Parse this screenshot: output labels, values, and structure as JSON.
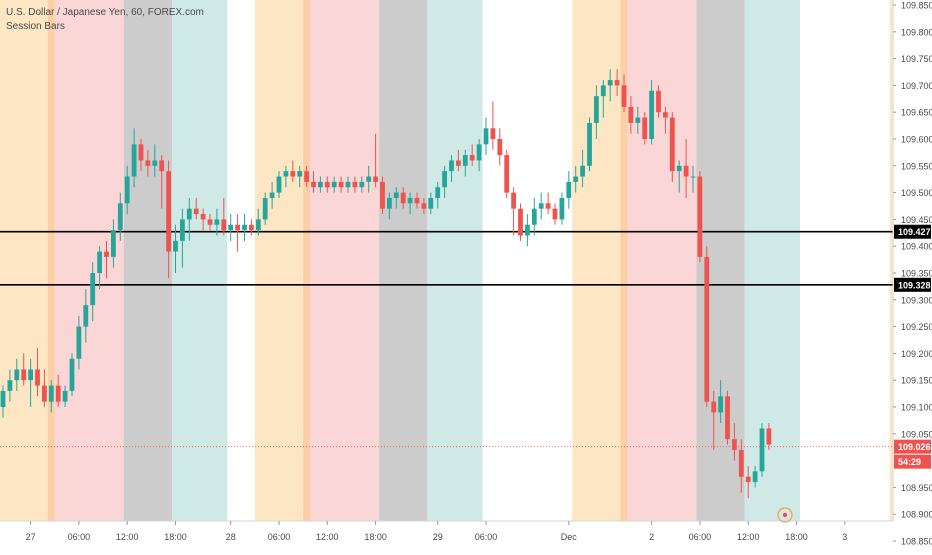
{
  "header": {
    "symbol_line": "U.S. Dollar / Japanese Yen, 60, FOREX.com",
    "indicator_label": "Session Bars"
  },
  "colors": {
    "up": "#26a69a",
    "down": "#ef5350",
    "session_asia": "#fde6c4",
    "session_asia_edge": "#fbd0a6",
    "session_london": "#fbd6d6",
    "session_overlap": "#cccccc",
    "session_ny": "#cfe9e6",
    "hline": "#000000",
    "current_price": "#ef5350",
    "axis_text": "#4a4a4a"
  },
  "price_axis": {
    "labels": [
      "109.850",
      "109.800",
      "109.750",
      "109.700",
      "109.650",
      "109.600",
      "109.550",
      "109.500",
      "109.450",
      "109.400",
      "109.350",
      "109.300",
      "109.250",
      "109.200",
      "109.150",
      "109.100",
      "109.050",
      "108.950",
      "108.900",
      "108.850"
    ]
  },
  "time_axis": {
    "labels": [
      "27",
      "06:00",
      "12:00",
      "18:00",
      "28",
      "06:00",
      "12:00",
      "18:00",
      "29",
      "06:00",
      "Dec",
      "2",
      "06:00",
      "12:00",
      "18:00",
      "3"
    ]
  },
  "badges": {
    "level_upper": "109.427",
    "level_lower": "109.328",
    "current_price": "109.026",
    "countdown": "54:29"
  },
  "chart_data": {
    "type": "candlestick",
    "symbol": "USD/JPY",
    "interval": "60",
    "ylim": [
      108.85,
      109.85
    ],
    "horizontal_levels": [
      109.427,
      109.328
    ],
    "current_price": 109.026,
    "session_bands": [
      {
        "session": "asia",
        "from": 0,
        "to": 8
      },
      {
        "session": "london",
        "from": 8,
        "to": 18
      },
      {
        "session": "overlap",
        "from": 18,
        "to": 25
      },
      {
        "session": "ny",
        "from": 25,
        "to": 33
      },
      {
        "session": "asia",
        "from": 37,
        "to": 45
      },
      {
        "session": "london",
        "from": 45,
        "to": 55
      },
      {
        "session": "overlap",
        "from": 55,
        "to": 62
      },
      {
        "session": "ny",
        "from": 62,
        "to": 70
      },
      {
        "session": "asia",
        "from": 83,
        "to": 91
      },
      {
        "session": "london",
        "from": 91,
        "to": 101
      },
      {
        "session": "overlap",
        "from": 101,
        "to": 108
      },
      {
        "session": "ny",
        "from": 108,
        "to": 116
      },
      {
        "session": "asia",
        "from": 129,
        "to": 137
      },
      {
        "session": "london",
        "from": 137,
        "to": 147
      },
      {
        "session": "overlap",
        "from": 147,
        "to": 154
      },
      {
        "session": "ny",
        "from": 154,
        "to": 162
      },
      {
        "session": "asia",
        "from": 175,
        "to": 183
      },
      {
        "session": "london",
        "from": 183,
        "to": 193
      },
      {
        "session": "overlap",
        "from": 193,
        "to": 200
      },
      {
        "session": "ny",
        "from": 200,
        "to": 208
      }
    ],
    "candles": [
      {
        "o": 109.1,
        "h": 109.14,
        "l": 109.08,
        "c": 109.13
      },
      {
        "o": 109.13,
        "h": 109.17,
        "l": 109.11,
        "c": 109.15
      },
      {
        "o": 109.15,
        "h": 109.19,
        "l": 109.13,
        "c": 109.17
      },
      {
        "o": 109.17,
        "h": 109.2,
        "l": 109.14,
        "c": 109.15
      },
      {
        "o": 109.15,
        "h": 109.19,
        "l": 109.1,
        "c": 109.17
      },
      {
        "o": 109.17,
        "h": 109.21,
        "l": 109.12,
        "c": 109.14
      },
      {
        "o": 109.14,
        "h": 109.17,
        "l": 109.1,
        "c": 109.11
      },
      {
        "o": 109.11,
        "h": 109.15,
        "l": 109.09,
        "c": 109.14
      },
      {
        "o": 109.14,
        "h": 109.16,
        "l": 109.1,
        "c": 109.11
      },
      {
        "o": 109.11,
        "h": 109.14,
        "l": 109.1,
        "c": 109.13
      },
      {
        "o": 109.13,
        "h": 109.2,
        "l": 109.12,
        "c": 109.19
      },
      {
        "o": 109.19,
        "h": 109.27,
        "l": 109.17,
        "c": 109.25
      },
      {
        "o": 109.25,
        "h": 109.32,
        "l": 109.22,
        "c": 109.29
      },
      {
        "o": 109.29,
        "h": 109.37,
        "l": 109.26,
        "c": 109.35
      },
      {
        "o": 109.35,
        "h": 109.4,
        "l": 109.32,
        "c": 109.39
      },
      {
        "o": 109.39,
        "h": 109.41,
        "l": 109.34,
        "c": 109.38
      },
      {
        "o": 109.38,
        "h": 109.45,
        "l": 109.36,
        "c": 109.43
      },
      {
        "o": 109.43,
        "h": 109.5,
        "l": 109.41,
        "c": 109.48
      },
      {
        "o": 109.48,
        "h": 109.55,
        "l": 109.46,
        "c": 109.53
      },
      {
        "o": 109.53,
        "h": 109.62,
        "l": 109.51,
        "c": 109.59
      },
      {
        "o": 109.59,
        "h": 109.6,
        "l": 109.54,
        "c": 109.56
      },
      {
        "o": 109.56,
        "h": 109.58,
        "l": 109.53,
        "c": 109.55
      },
      {
        "o": 109.55,
        "h": 109.59,
        "l": 109.53,
        "c": 109.56
      },
      {
        "o": 109.56,
        "h": 109.57,
        "l": 109.47,
        "c": 109.54
      },
      {
        "o": 109.54,
        "h": 109.56,
        "l": 109.34,
        "c": 109.39
      },
      {
        "o": 109.39,
        "h": 109.44,
        "l": 109.35,
        "c": 109.41
      },
      {
        "o": 109.41,
        "h": 109.47,
        "l": 109.36,
        "c": 109.45
      },
      {
        "o": 109.45,
        "h": 109.49,
        "l": 109.41,
        "c": 109.47
      },
      {
        "o": 109.47,
        "h": 109.49,
        "l": 109.45,
        "c": 109.46
      },
      {
        "o": 109.46,
        "h": 109.47,
        "l": 109.43,
        "c": 109.45
      },
      {
        "o": 109.45,
        "h": 109.46,
        "l": 109.43,
        "c": 109.44
      },
      {
        "o": 109.44,
        "h": 109.47,
        "l": 109.42,
        "c": 109.45
      },
      {
        "o": 109.45,
        "h": 109.49,
        "l": 109.42,
        "c": 109.43
      },
      {
        "o": 109.43,
        "h": 109.46,
        "l": 109.41,
        "c": 109.44
      },
      {
        "o": 109.44,
        "h": 109.46,
        "l": 109.39,
        "c": 109.43
      },
      {
        "o": 109.43,
        "h": 109.46,
        "l": 109.41,
        "c": 109.44
      },
      {
        "o": 109.44,
        "h": 109.45,
        "l": 109.42,
        "c": 109.43
      },
      {
        "o": 109.43,
        "h": 109.47,
        "l": 109.42,
        "c": 109.45
      },
      {
        "o": 109.45,
        "h": 109.5,
        "l": 109.44,
        "c": 109.49
      },
      {
        "o": 109.49,
        "h": 109.52,
        "l": 109.47,
        "c": 109.5
      },
      {
        "o": 109.5,
        "h": 109.54,
        "l": 109.49,
        "c": 109.53
      },
      {
        "o": 109.53,
        "h": 109.55,
        "l": 109.51,
        "c": 109.54
      },
      {
        "o": 109.54,
        "h": 109.56,
        "l": 109.52,
        "c": 109.53
      },
      {
        "o": 109.53,
        "h": 109.55,
        "l": 109.51,
        "c": 109.54
      },
      {
        "o": 109.54,
        "h": 109.55,
        "l": 109.51,
        "c": 109.52
      },
      {
        "o": 109.52,
        "h": 109.54,
        "l": 109.5,
        "c": 109.51
      },
      {
        "o": 109.51,
        "h": 109.53,
        "l": 109.5,
        "c": 109.52
      },
      {
        "o": 109.52,
        "h": 109.53,
        "l": 109.5,
        "c": 109.51
      },
      {
        "o": 109.51,
        "h": 109.53,
        "l": 109.5,
        "c": 109.52
      },
      {
        "o": 109.52,
        "h": 109.53,
        "l": 109.5,
        "c": 109.51
      },
      {
        "o": 109.51,
        "h": 109.53,
        "l": 109.5,
        "c": 109.52
      },
      {
        "o": 109.52,
        "h": 109.53,
        "l": 109.5,
        "c": 109.51
      },
      {
        "o": 109.51,
        "h": 109.53,
        "l": 109.5,
        "c": 109.52
      },
      {
        "o": 109.52,
        "h": 109.55,
        "l": 109.5,
        "c": 109.53
      },
      {
        "o": 109.53,
        "h": 109.61,
        "l": 109.51,
        "c": 109.52
      },
      {
        "o": 109.52,
        "h": 109.53,
        "l": 109.46,
        "c": 109.47
      },
      {
        "o": 109.47,
        "h": 109.5,
        "l": 109.45,
        "c": 109.49
      },
      {
        "o": 109.49,
        "h": 109.51,
        "l": 109.47,
        "c": 109.5
      },
      {
        "o": 109.5,
        "h": 109.51,
        "l": 109.47,
        "c": 109.48
      },
      {
        "o": 109.48,
        "h": 109.5,
        "l": 109.46,
        "c": 109.49
      },
      {
        "o": 109.49,
        "h": 109.5,
        "l": 109.47,
        "c": 109.48
      },
      {
        "o": 109.48,
        "h": 109.49,
        "l": 109.46,
        "c": 109.47
      },
      {
        "o": 109.47,
        "h": 109.5,
        "l": 109.46,
        "c": 109.49
      },
      {
        "o": 109.49,
        "h": 109.52,
        "l": 109.47,
        "c": 109.51
      },
      {
        "o": 109.51,
        "h": 109.55,
        "l": 109.49,
        "c": 109.54
      },
      {
        "o": 109.54,
        "h": 109.57,
        "l": 109.52,
        "c": 109.56
      },
      {
        "o": 109.56,
        "h": 109.58,
        "l": 109.54,
        "c": 109.55
      },
      {
        "o": 109.55,
        "h": 109.58,
        "l": 109.53,
        "c": 109.57
      },
      {
        "o": 109.57,
        "h": 109.59,
        "l": 109.55,
        "c": 109.56
      },
      {
        "o": 109.56,
        "h": 109.6,
        "l": 109.54,
        "c": 109.59
      },
      {
        "o": 109.59,
        "h": 109.64,
        "l": 109.57,
        "c": 109.62
      },
      {
        "o": 109.62,
        "h": 109.67,
        "l": 109.58,
        "c": 109.6
      },
      {
        "o": 109.6,
        "h": 109.62,
        "l": 109.55,
        "c": 109.57
      },
      {
        "o": 109.57,
        "h": 109.58,
        "l": 109.49,
        "c": 109.5
      },
      {
        "o": 109.5,
        "h": 109.51,
        "l": 109.42,
        "c": 109.47
      },
      {
        "o": 109.47,
        "h": 109.48,
        "l": 109.41,
        "c": 109.42
      },
      {
        "o": 109.42,
        "h": 109.46,
        "l": 109.4,
        "c": 109.44
      },
      {
        "o": 109.44,
        "h": 109.49,
        "l": 109.42,
        "c": 109.47
      },
      {
        "o": 109.47,
        "h": 109.5,
        "l": 109.45,
        "c": 109.48
      },
      {
        "o": 109.48,
        "h": 109.5,
        "l": 109.46,
        "c": 109.47
      },
      {
        "o": 109.47,
        "h": 109.48,
        "l": 109.44,
        "c": 109.45
      },
      {
        "o": 109.45,
        "h": 109.5,
        "l": 109.44,
        "c": 109.49
      },
      {
        "o": 109.49,
        "h": 109.54,
        "l": 109.47,
        "c": 109.52
      },
      {
        "o": 109.52,
        "h": 109.55,
        "l": 109.5,
        "c": 109.53
      },
      {
        "o": 109.53,
        "h": 109.58,
        "l": 109.51,
        "c": 109.55
      },
      {
        "o": 109.55,
        "h": 109.64,
        "l": 109.54,
        "c": 109.63
      },
      {
        "o": 109.63,
        "h": 109.7,
        "l": 109.6,
        "c": 109.68
      },
      {
        "o": 109.68,
        "h": 109.71,
        "l": 109.64,
        "c": 109.7
      },
      {
        "o": 109.7,
        "h": 109.73,
        "l": 109.67,
        "c": 109.71
      },
      {
        "o": 109.71,
        "h": 109.73,
        "l": 109.68,
        "c": 109.7
      },
      {
        "o": 109.7,
        "h": 109.72,
        "l": 109.65,
        "c": 109.66
      },
      {
        "o": 109.66,
        "h": 109.68,
        "l": 109.61,
        "c": 109.63
      },
      {
        "o": 109.63,
        "h": 109.66,
        "l": 109.61,
        "c": 109.64
      },
      {
        "o": 109.64,
        "h": 109.65,
        "l": 109.59,
        "c": 109.6
      },
      {
        "o": 109.6,
        "h": 109.71,
        "l": 109.59,
        "c": 109.69
      },
      {
        "o": 109.69,
        "h": 109.7,
        "l": 109.64,
        "c": 109.65
      },
      {
        "o": 109.65,
        "h": 109.66,
        "l": 109.61,
        "c": 109.64
      },
      {
        "o": 109.64,
        "h": 109.65,
        "l": 109.52,
        "c": 109.54
      },
      {
        "o": 109.54,
        "h": 109.56,
        "l": 109.5,
        "c": 109.55
      },
      {
        "o": 109.55,
        "h": 109.6,
        "l": 109.49,
        "c": 109.53
      },
      {
        "o": 109.53,
        "h": 109.55,
        "l": 109.5,
        "c": 109.53
      },
      {
        "o": 109.53,
        "h": 109.54,
        "l": 109.37,
        "c": 109.38
      },
      {
        "o": 109.38,
        "h": 109.4,
        "l": 109.1,
        "c": 109.11
      },
      {
        "o": 109.11,
        "h": 109.13,
        "l": 109.02,
        "c": 109.09
      },
      {
        "o": 109.09,
        "h": 109.15,
        "l": 109.07,
        "c": 109.12
      },
      {
        "o": 109.12,
        "h": 109.13,
        "l": 109.03,
        "c": 109.04
      },
      {
        "o": 109.04,
        "h": 109.07,
        "l": 109.0,
        "c": 109.02
      },
      {
        "o": 109.02,
        "h": 109.04,
        "l": 108.94,
        "c": 108.97
      },
      {
        "o": 108.97,
        "h": 108.99,
        "l": 108.93,
        "c": 108.96
      },
      {
        "o": 108.96,
        "h": 108.99,
        "l": 108.95,
        "c": 108.98
      },
      {
        "o": 108.98,
        "h": 109.07,
        "l": 108.97,
        "c": 109.06
      },
      {
        "o": 109.06,
        "h": 109.07,
        "l": 109.02,
        "c": 109.03
      }
    ]
  }
}
